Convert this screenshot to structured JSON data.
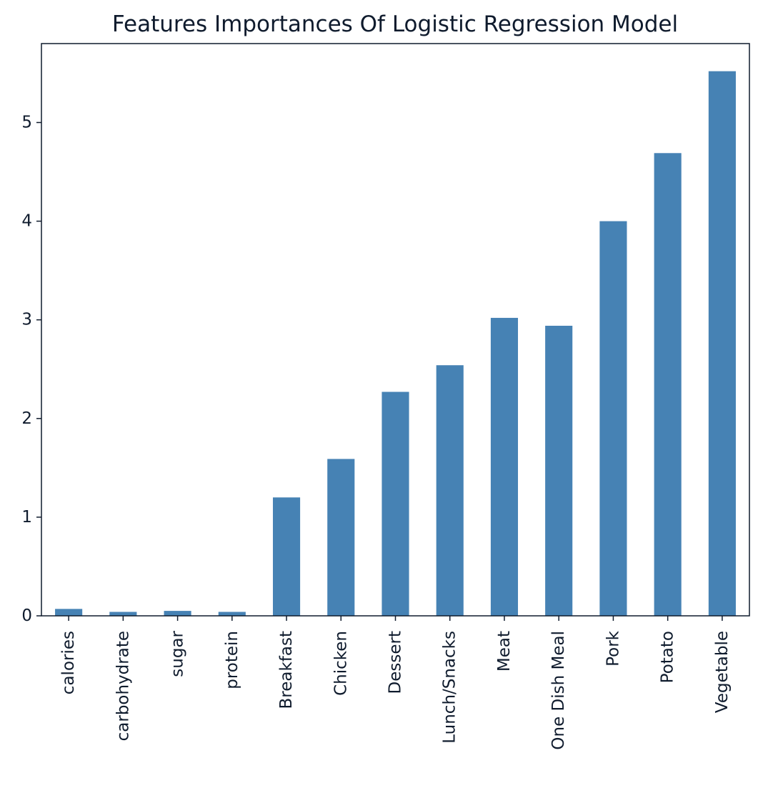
{
  "chart_data": {
    "type": "bar",
    "title": "Features Importances Of Logistic Regression Model",
    "xlabel": "",
    "ylabel": "",
    "categories": [
      "calories",
      "carbohydrate",
      "sugar",
      "protein",
      "Breakfast",
      "Chicken",
      "Dessert",
      "Lunch/Snacks",
      "Meat",
      "One Dish Meal",
      "Pork",
      "Potato",
      "Vegetable"
    ],
    "values": [
      0.07,
      0.04,
      0.05,
      0.04,
      1.2,
      1.59,
      2.27,
      2.54,
      3.02,
      2.94,
      4.0,
      4.69,
      5.52
    ],
    "ylim": [
      0,
      5.8
    ],
    "yticks": [
      0,
      1,
      2,
      3,
      4,
      5
    ],
    "ytick_labels": [
      "0",
      "1",
      "2",
      "3",
      "4",
      "5"
    ],
    "bar_color": "#4682b4",
    "grid": false,
    "legend": "none"
  }
}
